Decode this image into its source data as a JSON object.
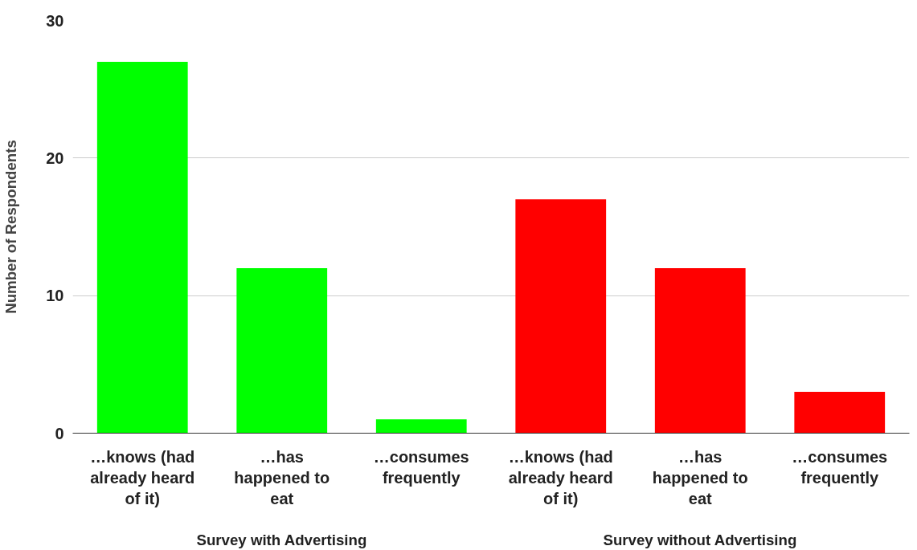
{
  "chart_data": {
    "type": "bar",
    "ylabel": "Number of Respondents",
    "categories": [
      "…knows (had\nalready heard\nof it)",
      "…has\nhappened to\neat",
      "…consumes\nfrequently",
      "…knows (had\nalready heard\nof it)",
      "…has\nhappened to\neat",
      "…consumes\nfrequently"
    ],
    "values": [
      27,
      12,
      1,
      17,
      12,
      3
    ],
    "colors": [
      "#00ff00",
      "#00ff00",
      "#00ff00",
      "#ff0000",
      "#ff0000",
      "#ff0000"
    ],
    "ylim": [
      0,
      30
    ],
    "yticks": [
      0,
      10,
      20,
      30
    ],
    "grid": "y",
    "annotations": [
      "Survey with Advertising",
      "Survey without Advertising"
    ]
  }
}
